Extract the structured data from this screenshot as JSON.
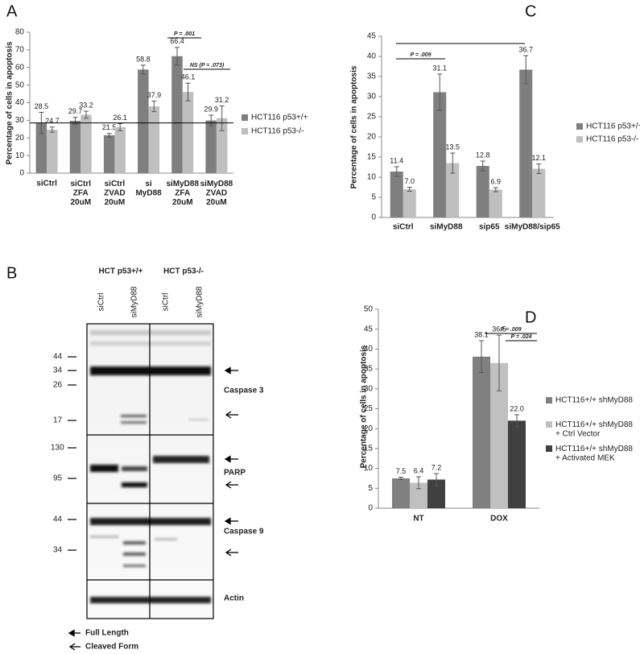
{
  "chart_data": [
    {
      "type": "bar",
      "panel": "A",
      "ylabel": "Percentage of cells in apoptosis",
      "categories": [
        "siCtrl",
        "siCtrl\nZFA\n20uM",
        "siCtrl\nZVAD\n20uM",
        "si\nMyD88",
        "siMyD88\nZFA\n20uM",
        "siMyD88\nZVAD\n20uM"
      ],
      "series": [
        {
          "name": "HCT116 p53+/+",
          "color": "#7f7f7f",
          "values": [
            28.5,
            29.7,
            21.5,
            58.8,
            66.4,
            29.9
          ],
          "errors": [
            6,
            2,
            1,
            2.5,
            5,
            3
          ]
        },
        {
          "name": "HCT116 p53-/-",
          "color": "#bfbfbf",
          "values": [
            24.7,
            33.2,
            26.1,
            37.9,
            46.1,
            31.2
          ],
          "errors": [
            1.5,
            2,
            2,
            3,
            5,
            7
          ]
        }
      ],
      "ylim": [
        0,
        80
      ],
      "yticks": [
        0,
        10,
        20,
        30,
        40,
        50,
        60,
        70,
        80
      ],
      "annotations": [
        "P = .001",
        "NS (P = .073)"
      ]
    },
    {
      "type": "bar",
      "panel": "C",
      "ylabel": "Percentage of cells in apoptosis",
      "categories": [
        "siCtrl",
        "siMyD88",
        "sip65",
        "siMyD88/sip65"
      ],
      "series": [
        {
          "name": "HCT116 p53+/+",
          "color": "#7f7f7f",
          "values": [
            11.4,
            31.1,
            12.8,
            36.7
          ],
          "value_labels": [
            "11.4",
            "31.1",
            "12.8",
            "36.7"
          ],
          "errors": [
            1.2,
            4.5,
            1.2,
            3.5
          ]
        },
        {
          "name": "HCT116 p53-/-",
          "color": "#bfbfbf",
          "values": [
            7.0,
            13.5,
            6.9,
            12.1
          ],
          "value_labels": [
            "7.0",
            "13.5",
            "6.9",
            "12.1"
          ],
          "errors": [
            0.5,
            2.5,
            0.5,
            1.2
          ]
        }
      ],
      "ylim": [
        0,
        45
      ],
      "yticks": [
        0,
        5,
        10,
        15,
        20,
        25,
        30,
        35,
        40,
        45
      ],
      "annotations": [
        "P = .009"
      ]
    },
    {
      "type": "bar",
      "panel": "D",
      "ylabel": "Percentage of cells in apoptosis",
      "categories": [
        "NT",
        "DOX"
      ],
      "series": [
        {
          "name": "HCT116+/+ shMyD88",
          "color": "#808080",
          "values": [
            7.5,
            38.1
          ],
          "errors": [
            0.3,
            4
          ]
        },
        {
          "name": "HCT116+/+ shMyD88\n+ Ctrl Vector",
          "color": "#c0c0c0",
          "values": [
            6.4,
            36.5
          ],
          "errors": [
            1.5,
            7
          ]
        },
        {
          "name": "HCT116+/+ shMyD88\n+ Activated MEK",
          "color": "#404040",
          "values": [
            7.2,
            22.0
          ],
          "value_labels": [
            "7.2",
            "22.0"
          ],
          "errors": [
            1.5,
            1.5
          ]
        }
      ],
      "ylim": [
        0,
        50
      ],
      "yticks": [
        0,
        5,
        10,
        15,
        20,
        25,
        30,
        35,
        40,
        45,
        50
      ],
      "annotations": [
        "P = .009",
        "P = .024"
      ]
    }
  ],
  "blot": {
    "panel": "B",
    "groups": [
      "HCT p53+/+",
      "HCT p53-/-"
    ],
    "lanes": [
      "siCtrl",
      "siMyD88",
      "siCtrl",
      "siMyD88"
    ],
    "markers": [
      44,
      34,
      26,
      17,
      130,
      95,
      44,
      34
    ],
    "proteins": [
      "Caspase 3",
      "PARP",
      "Caspase 9",
      "Actin"
    ],
    "legend": [
      "Full Length",
      "Cleaved Form"
    ]
  }
}
